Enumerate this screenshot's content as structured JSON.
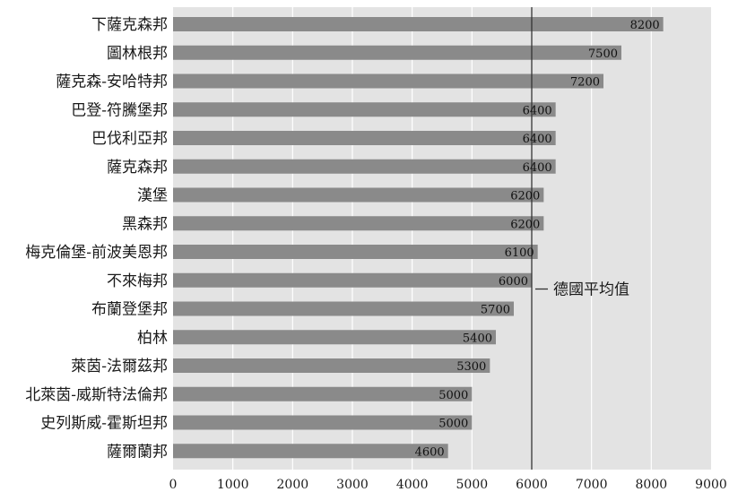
{
  "chart_data": {
    "type": "bar",
    "orientation": "horizontal",
    "categories": [
      "下薩克森邦",
      "圖林根邦",
      "薩克森-安哈特邦",
      "巴登-符騰堡邦",
      "巴伐利亞邦",
      "薩克森邦",
      "漢堡",
      "黑森邦",
      "梅克倫堡-前波美恩邦",
      "不來梅邦",
      "布蘭登堡邦",
      "柏林",
      "萊茵-法爾茲邦",
      "北萊茵-威斯特法倫邦",
      "史列斯威-霍斯坦邦",
      "薩爾蘭邦"
    ],
    "values": [
      8200,
      7500,
      7200,
      6400,
      6400,
      6400,
      6200,
      6200,
      6100,
      6000,
      5700,
      5400,
      5300,
      5000,
      5000,
      4600
    ],
    "data_labels": [
      "8200",
      "7500",
      "7200",
      "6400",
      "6400",
      "6400",
      "6200",
      "6200",
      "6100",
      "6000",
      "5700",
      "5400",
      "5300",
      "5000",
      "5000",
      "4600"
    ],
    "xlim": [
      0,
      9000
    ],
    "xticks": [
      0,
      1000,
      2000,
      3000,
      4000,
      5000,
      6000,
      7000,
      8000,
      9000
    ],
    "xtick_labels": [
      "0",
      "1000",
      "2000",
      "3000",
      "4000",
      "5000",
      "6000",
      "7000",
      "8000",
      "9000"
    ],
    "grid": "vertical",
    "reference_line": {
      "value": 6000,
      "label": "德國平均值"
    },
    "colors": {
      "plot_background": "#e3e3e3",
      "bar": "#8a8a8a",
      "gridline": "#ffffff",
      "reference_line": "#333333"
    },
    "title": "",
    "xlabel": "",
    "ylabel": ""
  }
}
